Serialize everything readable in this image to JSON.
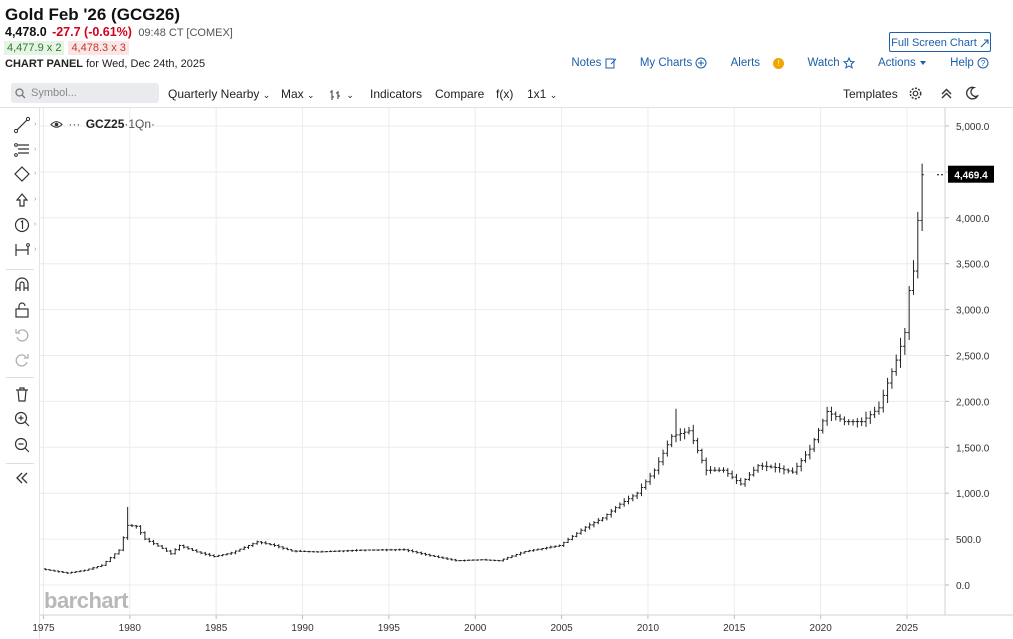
{
  "header": {
    "title": "Gold Feb '26 (GCG26)",
    "last": "4,478.0",
    "change": "-27.7 (-0.61%)",
    "time": "09:48 CT [COMEX]",
    "bid": "4,477.9 x 2",
    "ask": "4,478.3 x 3",
    "panel_label_bold": "CHART PANEL",
    "panel_label_rest": " for Wed, Dec 24th, 2025",
    "fullscreen_label": "Full Screen Chart"
  },
  "top_links": {
    "notes": "Notes",
    "my_charts": "My Charts",
    "alerts": "Alerts",
    "alerts_badge": "!",
    "watch": "Watch",
    "actions": "Actions",
    "help": "Help"
  },
  "toolbar": {
    "search_placeholder": "Symbol...",
    "period": "Quarterly Nearby",
    "range": "Max",
    "indicators": "Indicators",
    "compare": "Compare",
    "fx": "f(x)",
    "layout": "1x1",
    "templates": "Templates"
  },
  "left_tools": [
    "trend-line-icon",
    "fibonacci-icon",
    "shapes-icon",
    "arrow-up-icon",
    "number-marker-icon",
    "measure-icon",
    "magnet-icon",
    "lock-icon",
    "undo-icon",
    "redo-icon",
    "trash-icon",
    "zoom-in-icon",
    "zoom-out-icon",
    "collapse-icon"
  ],
  "chart_symbol": {
    "name": "GCZ25",
    "suffix": "·1Qn·"
  },
  "watermark": "barchart",
  "colors": {
    "accent": "#1c5fa8",
    "down": "#d0021b",
    "bar": "#222222",
    "last_badge": "#000000"
  },
  "chart_data": {
    "type": "ohlc",
    "title": "Gold Feb '26 (GCG26)",
    "x_ticks": [
      "1975",
      "1980",
      "1985",
      "1990",
      "1995",
      "2000",
      "2005",
      "2010",
      "2015",
      "2020",
      "2025"
    ],
    "y_ticks": [
      "0.0",
      "500.0",
      "1,000.0",
      "1,500.0",
      "2,000.0",
      "2,500.0",
      "3,000.0",
      "3,500.0",
      "4,000.0",
      "4,500.0",
      "5,000.0"
    ],
    "ylim": [
      -20,
      5050
    ],
    "xlim": [
      1974.8,
      2027.2
    ],
    "last_value_label": "4,469.4",
    "last_value": 4469.4,
    "grid": true,
    "anchors": [
      [
        1975.0,
        175
      ],
      [
        1976.5,
        130
      ],
      [
        1977.5,
        160
      ],
      [
        1978.5,
        215
      ],
      [
        1979.5,
        380
      ],
      [
        1980.0,
        650
      ],
      [
        1980.5,
        640
      ],
      [
        1981.0,
        500
      ],
      [
        1982.0,
        400
      ],
      [
        1982.5,
        340
      ],
      [
        1983.0,
        430
      ],
      [
        1984.0,
        360
      ],
      [
        1985.0,
        310
      ],
      [
        1986.0,
        350
      ],
      [
        1987.5,
        470
      ],
      [
        1988.5,
        430
      ],
      [
        1989.5,
        370
      ],
      [
        1991.0,
        360
      ],
      [
        1993.5,
        380
      ],
      [
        1996.0,
        385
      ],
      [
        1997.5,
        320
      ],
      [
        1999.0,
        265
      ],
      [
        2000.5,
        275
      ],
      [
        2001.5,
        265
      ],
      [
        2003.0,
        365
      ],
      [
        2005.0,
        430
      ],
      [
        2006.5,
        630
      ],
      [
        2007.5,
        730
      ],
      [
        2008.5,
        880
      ],
      [
        2009.5,
        1000
      ],
      [
        2010.5,
        1250
      ],
      [
        2011.5,
        1620
      ],
      [
        2012.5,
        1680
      ],
      [
        2013.5,
        1250
      ],
      [
        2014.5,
        1250
      ],
      [
        2015.5,
        1100
      ],
      [
        2016.5,
        1300
      ],
      [
        2017.5,
        1280
      ],
      [
        2018.5,
        1230
      ],
      [
        2019.5,
        1480
      ],
      [
        2020.5,
        1890
      ],
      [
        2021.5,
        1780
      ],
      [
        2022.5,
        1780
      ],
      [
        2023.5,
        1930
      ],
      [
        2024.0,
        2200
      ],
      [
        2024.5,
        2450
      ],
      [
        2025.0,
        2750
      ],
      [
        2025.3,
        3300
      ],
      [
        2025.55,
        3450
      ],
      [
        2025.8,
        4100
      ],
      [
        2026.0,
        4469
      ]
    ]
  }
}
